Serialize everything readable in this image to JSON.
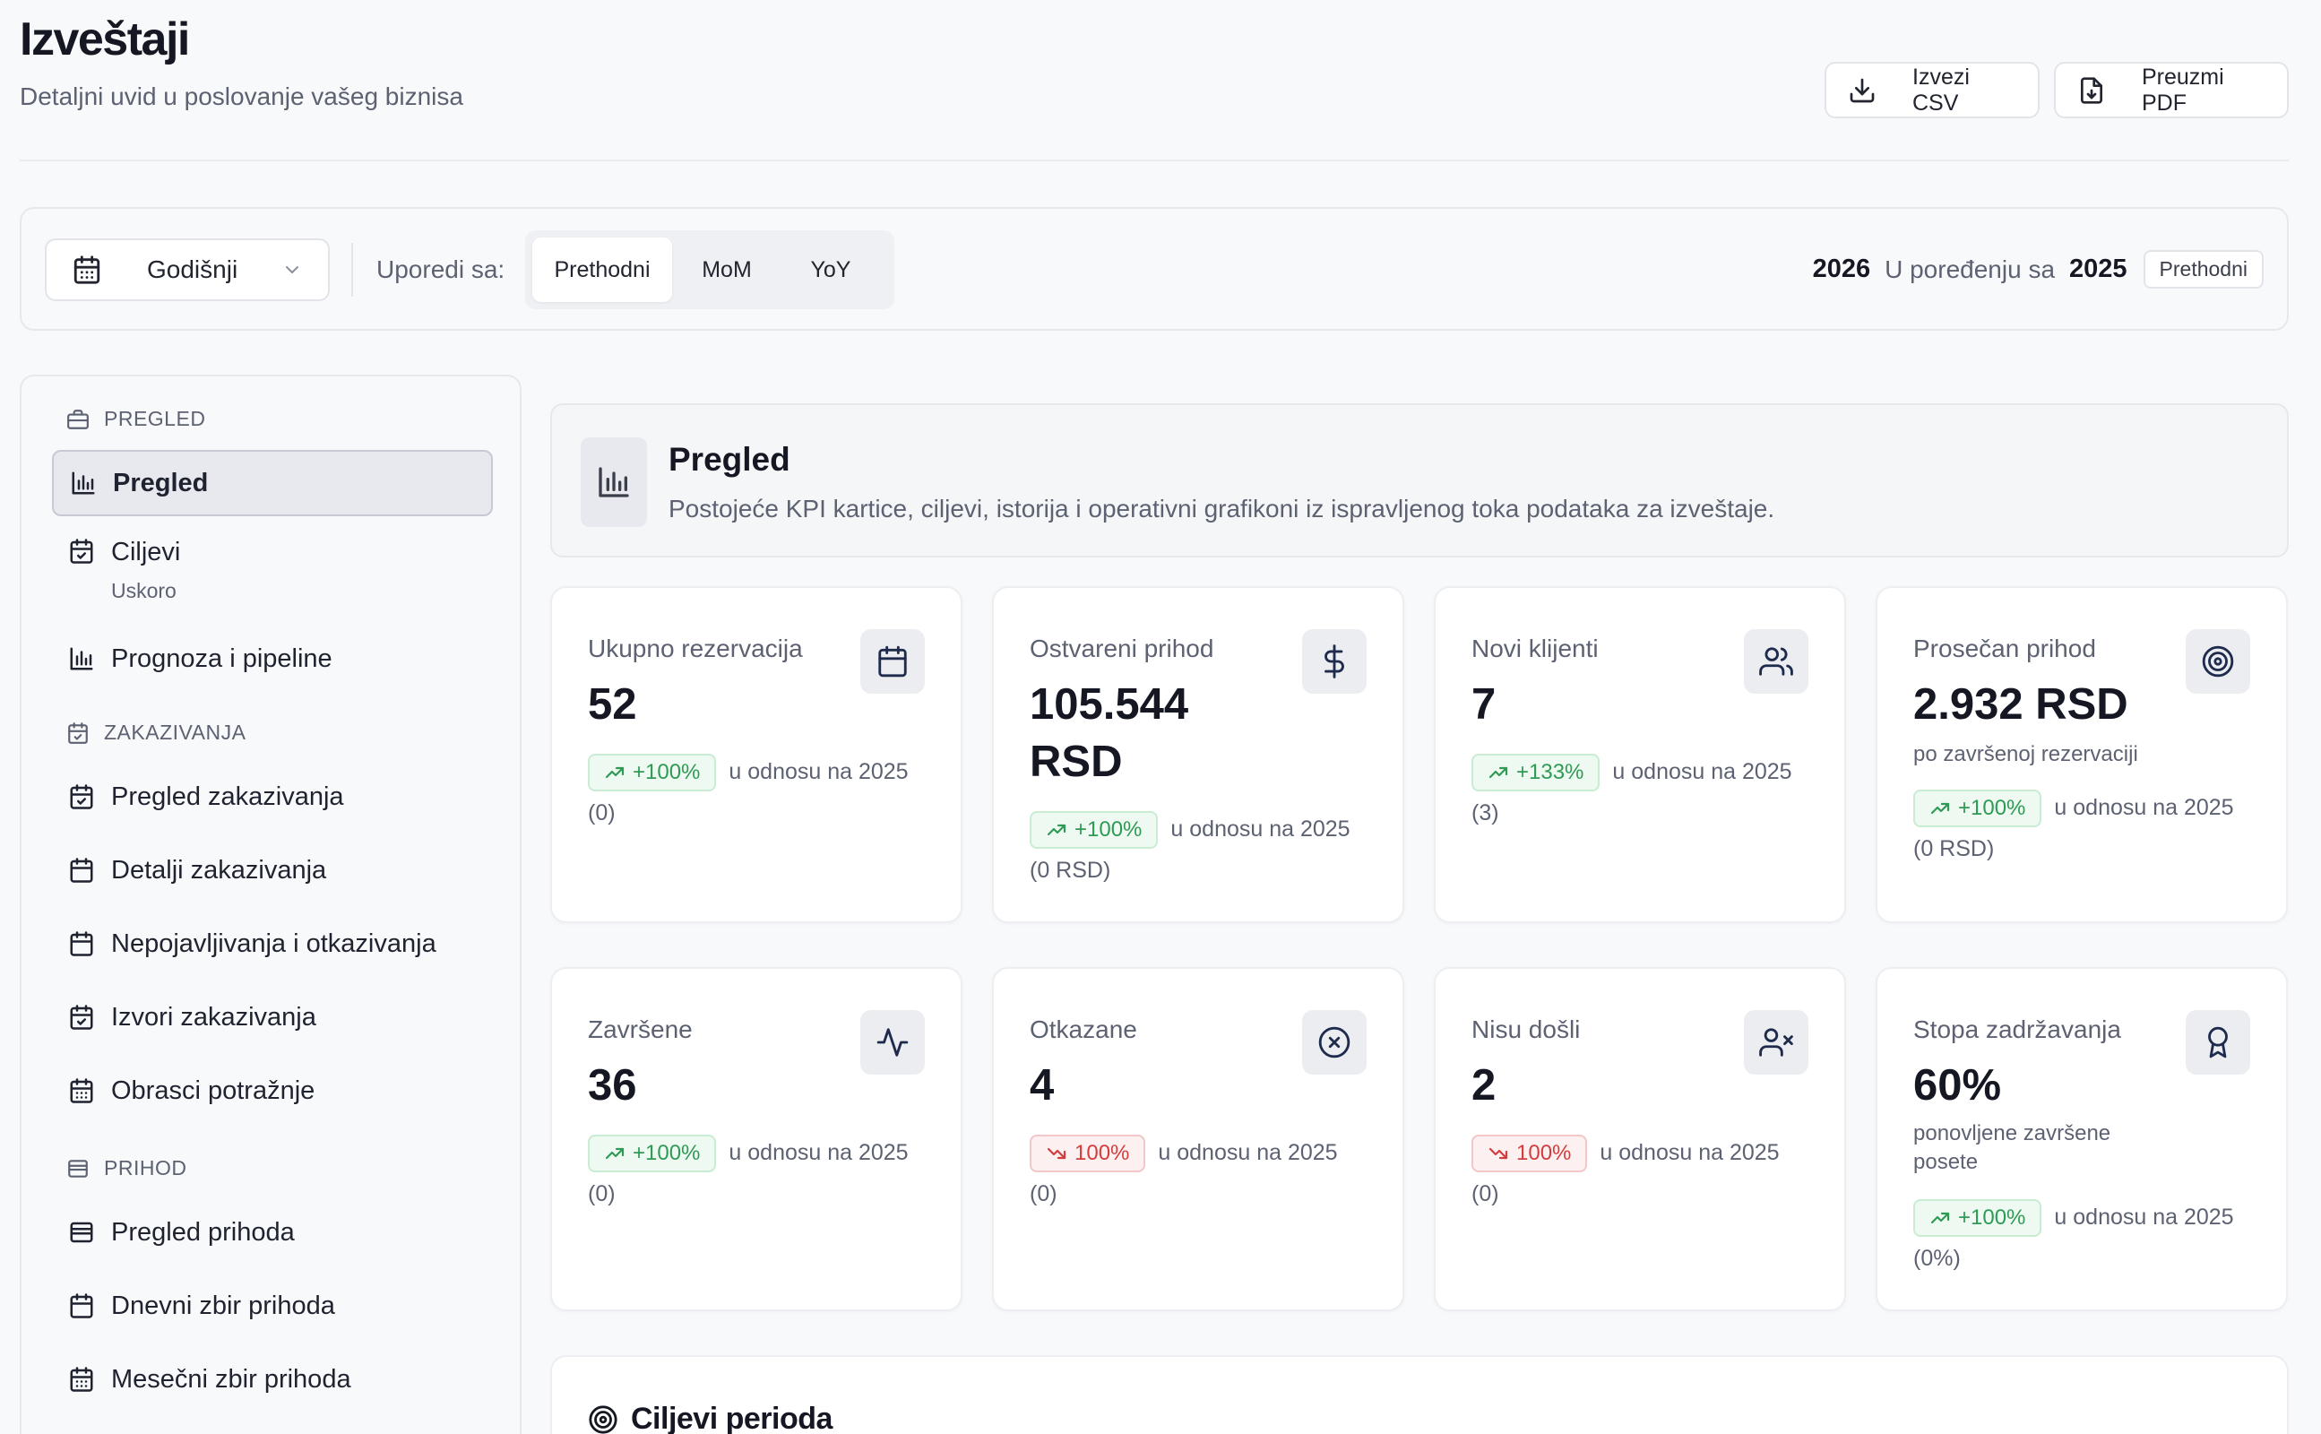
{
  "header": {
    "title": "Izveštaji",
    "subtitle": "Detaljni uvid u poslovanje vašeg biznisa",
    "export_csv": "Izvezi CSV",
    "download_pdf": "Preuzmi PDF"
  },
  "filters": {
    "period": "Godišnji",
    "compare_label": "Uporedi sa:",
    "compare_options": [
      "Prethodni",
      "MoM",
      "YoY"
    ],
    "selected_compare": "Prethodni",
    "current_year": "2026",
    "compare_text": "U poređenju sa",
    "compare_year": "2025",
    "compare_badge": "Prethodni"
  },
  "sidebar": {
    "sections": [
      {
        "label": "PREGLED",
        "icon": "briefcase-icon"
      },
      {
        "label": "ZAKAZIVANJA",
        "icon": "calendar-check-icon"
      },
      {
        "label": "PRIHOD",
        "icon": "wallet-icon"
      }
    ],
    "items": [
      {
        "label": "Pregled",
        "icon": "bar-chart-icon",
        "active": true
      },
      {
        "label": "Ciljevi",
        "sub": "Uskoro",
        "icon": "calendar-check-icon"
      },
      {
        "label": "Prognoza i pipeline",
        "icon": "bar-chart-icon"
      },
      {
        "label": "Pregled zakazivanja",
        "icon": "calendar-check-icon"
      },
      {
        "label": "Detalji zakazivanja",
        "icon": "calendar-icon"
      },
      {
        "label": "Nepojavljivanja i otkazivanja",
        "icon": "calendar-icon"
      },
      {
        "label": "Izvori zakazivanja",
        "icon": "calendar-check-icon"
      },
      {
        "label": "Obrasci potražnje",
        "icon": "calendar-grid-icon"
      },
      {
        "label": "Pregled prihoda",
        "icon": "wallet-icon"
      },
      {
        "label": "Dnevni zbir prihoda",
        "icon": "calendar-icon"
      },
      {
        "label": "Mesečni zbir prihoda",
        "icon": "calendar-grid-icon"
      }
    ]
  },
  "banner": {
    "title": "Pregled",
    "subtitle": "Postojeće KPI kartice, ciljevi, istorija i operativni grafikoni iz ispravljenog toka podataka za izveštaje."
  },
  "kpis": [
    {
      "label": "Ukupno rezervacija",
      "value": "52",
      "delta": "+100%",
      "direction": "up",
      "compare": "u odnosu na 2025",
      "prev": "(0)",
      "icon": "calendar-icon"
    },
    {
      "label": "Ostvareni prihod",
      "value": "105.544",
      "value2": "RSD",
      "delta": "+100%",
      "direction": "up",
      "compare": "u odnosu na 2025",
      "prev": "(0 RSD)",
      "icon": "dollar-icon"
    },
    {
      "label": "Novi klijenti",
      "value": "7",
      "delta": "+133%",
      "direction": "up",
      "compare": "u odnosu na 2025",
      "prev": "(3)",
      "icon": "users-icon"
    },
    {
      "label": "Prosečan prihod",
      "value": "2.932 RSD",
      "note": "po završenoj rezervaciji",
      "delta": "+100%",
      "direction": "up",
      "compare": "u odnosu na 2025",
      "prev": "(0 RSD)",
      "icon": "target-icon"
    },
    {
      "label": "Završene",
      "value": "36",
      "delta": "+100%",
      "direction": "up",
      "compare": "u odnosu na 2025",
      "prev": "(0)",
      "icon": "activity-icon"
    },
    {
      "label": "Otkazane",
      "value": "4",
      "delta": "100%",
      "direction": "down",
      "compare": "u odnosu na 2025",
      "prev": "(0)",
      "icon": "x-circle-icon"
    },
    {
      "label": "Nisu došli",
      "value": "2",
      "delta": "100%",
      "direction": "down",
      "compare": "u odnosu na 2025",
      "prev": "(0)",
      "icon": "user-x-icon"
    },
    {
      "label": "Stopa zadržavanja",
      "value": "60%",
      "note": "ponovljene završene posete",
      "delta": "+100%",
      "direction": "up",
      "compare": "u odnosu na 2025",
      "prev": "(0%)",
      "icon": "award-icon"
    }
  ],
  "goals": {
    "title": "Ciljevi perioda"
  },
  "colors": {
    "up": "#2f9a55",
    "down": "#d43d3d",
    "accent": "#151823"
  }
}
